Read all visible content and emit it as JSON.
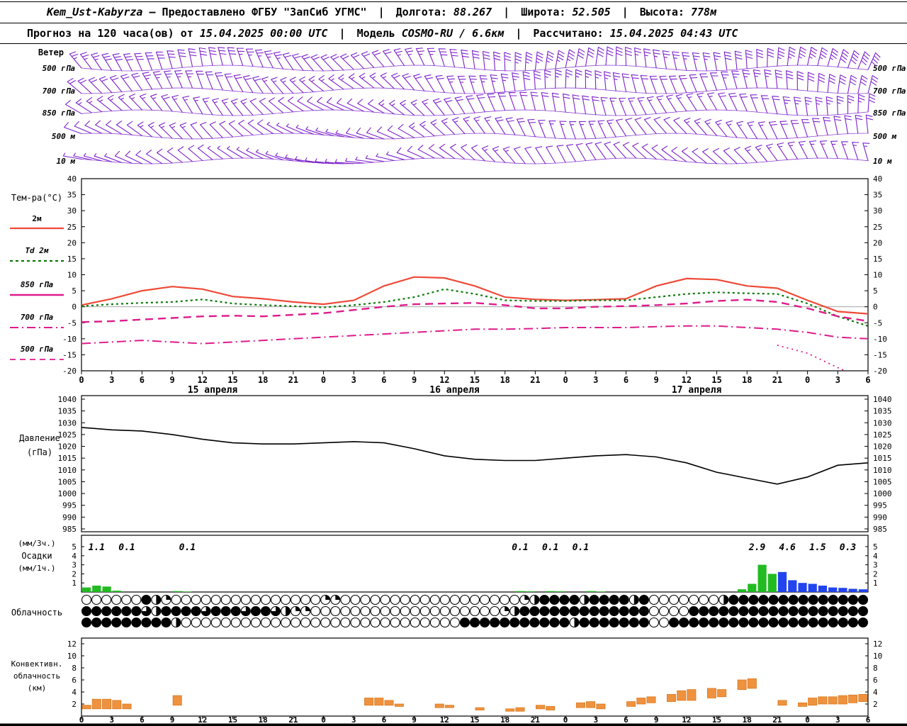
{
  "header": {
    "station": "Kem_Ust-Kabyrza",
    "provided": "— Предоставлено ФГБУ \"ЗапСиб УГМС\"",
    "sep": "|",
    "lon_label": "Долгота:",
    "lon_value": "88.267",
    "lat_label": "Широта:",
    "lat_value": "52.505",
    "alt_label": "Высота:",
    "alt_value": "778м",
    "forecast_label": "Прогноз на 120 часа(ов) от",
    "forecast_time": "15.04.2025 00:00 UTC",
    "model_label": "Модель",
    "model_value": "COSMO-RU / 6.6км",
    "calc_label": "Рассчитано:",
    "calc_value": "15.04.2025 04:43 UTC"
  },
  "labels": {
    "wind": "Ветер",
    "temp_title": "Тем-ра(°C)",
    "pressure_1": "Давление",
    "pressure_2": "(гПа)",
    "precip_1": "(мм/3ч.)",
    "precip_2": "Осадки",
    "precip_3": "(мм/1ч.)",
    "cloud": "Облачность",
    "conv_1": "Конвективн.",
    "conv_2": "облачность",
    "conv_3": "(км)"
  },
  "colors": {
    "wind": "#7d22cc",
    "t2m": "#ee4a38",
    "td": "#0a7a0a",
    "upper": "#dd1c8c",
    "pressure": "#000000",
    "rain": "#22bb22",
    "snow": "#2244ee",
    "conv": "#ef923f",
    "conv_stroke": "#d97a20"
  },
  "chart_data": [
    {
      "name": "wind",
      "type": "wind-barbs",
      "x_start": 0,
      "x_step": 3,
      "x_count": 27,
      "levels": [
        {
          "label": "500 гПа",
          "dir": [
            320,
            328,
            336,
            344,
            350,
            344,
            336,
            326,
            318,
            314,
            320,
            330,
            342,
            352,
            358,
            6,
            12,
            8,
            358,
            350,
            346,
            350,
            356,
            4,
            12,
            18,
            24
          ],
          "spd": [
            25,
            28,
            30,
            32,
            30,
            28,
            25,
            22,
            20,
            18,
            20,
            25,
            28,
            30,
            32,
            35,
            33,
            30,
            28,
            26,
            25,
            27,
            30,
            33,
            35,
            38,
            40
          ]
        },
        {
          "label": "700 гПа",
          "dir": [
            310,
            318,
            326,
            334,
            340,
            334,
            326,
            316,
            308,
            304,
            310,
            320,
            332,
            342,
            348,
            356,
            2,
            358,
            348,
            340,
            336,
            340,
            346,
            354,
            2,
            8,
            14
          ],
          "spd": [
            18,
            20,
            22,
            24,
            22,
            20,
            18,
            16,
            15,
            14,
            16,
            20,
            22,
            25,
            27,
            28,
            26,
            24,
            22,
            20,
            20,
            22,
            25,
            28,
            30,
            32,
            32
          ]
        },
        {
          "label": "850 гПа",
          "dir": [
            300,
            308,
            316,
            324,
            330,
            324,
            316,
            306,
            298,
            294,
            300,
            310,
            322,
            332,
            338,
            346,
            352,
            348,
            338,
            330,
            326,
            330,
            336,
            344,
            352,
            358,
            4
          ],
          "spd": [
            12,
            14,
            16,
            18,
            16,
            14,
            12,
            10,
            10,
            10,
            12,
            15,
            18,
            20,
            22,
            22,
            20,
            18,
            16,
            15,
            15,
            17,
            20,
            22,
            25,
            26,
            28
          ]
        },
        {
          "label": "500 м",
          "dir": [
            290,
            298,
            306,
            314,
            320,
            314,
            306,
            296,
            288,
            284,
            290,
            300,
            312,
            322,
            328,
            336,
            342,
            338,
            328,
            320,
            316,
            320,
            326,
            334,
            342,
            348,
            354
          ],
          "spd": [
            8,
            10,
            12,
            14,
            12,
            10,
            8,
            7,
            6,
            7,
            9,
            12,
            14,
            16,
            18,
            18,
            16,
            14,
            12,
            11,
            12,
            14,
            16,
            18,
            20,
            22,
            22
          ]
        },
        {
          "label": "10 м",
          "dir": [
            280,
            288,
            296,
            304,
            310,
            304,
            296,
            286,
            278,
            274,
            280,
            290,
            302,
            312,
            318,
            326,
            332,
            328,
            318,
            310,
            306,
            310,
            316,
            324,
            332,
            338,
            344
          ],
          "spd": [
            5,
            7,
            8,
            10,
            8,
            7,
            5,
            4,
            4,
            5,
            6,
            8,
            10,
            12,
            13,
            12,
            11,
            10,
            9,
            8,
            9,
            10,
            12,
            14,
            15,
            16,
            16
          ]
        }
      ]
    },
    {
      "name": "temperature",
      "type": "line",
      "ylim": [
        -20,
        40
      ],
      "ytick_step": 5,
      "x_start": 0,
      "x_step": 3,
      "x_count": 27,
      "series": [
        {
          "name": "2м",
          "color": "#ee4a38",
          "dash": "",
          "width": 2.2,
          "values": [
            0.5,
            2.5,
            5.0,
            6.3,
            5.5,
            3.2,
            2.5,
            1.5,
            0.8,
            2.0,
            6.5,
            9.3,
            9.0,
            6.5,
            3.0,
            2.3,
            2.0,
            2.2,
            2.5,
            6.5,
            8.8,
            8.5,
            6.5,
            5.8,
            2.0,
            -1.5,
            -2.2
          ]
        },
        {
          "name": "Td 2м",
          "color": "#0a7a0a",
          "dash": "3 4",
          "width": 2.2,
          "values": [
            0.2,
            0.8,
            1.2,
            1.5,
            2.3,
            1.0,
            0.5,
            0.2,
            -0.2,
            0.5,
            1.5,
            3.0,
            5.5,
            4.0,
            2.0,
            1.8,
            1.8,
            2.0,
            2.0,
            3.0,
            4.0,
            4.5,
            4.2,
            4.0,
            1.0,
            -3.0,
            -6.0
          ]
        },
        {
          "name": "850 гПа",
          "color": "#dd1c8c",
          "dash": "11 7",
          "width": 2.4,
          "values": [
            -4.8,
            -4.5,
            -4.0,
            -3.5,
            -3.0,
            -2.8,
            -3.0,
            -2.5,
            -2.0,
            -1.0,
            0.0,
            0.8,
            1.0,
            1.2,
            0.5,
            -0.5,
            -0.5,
            0.0,
            0.2,
            0.5,
            1.0,
            1.8,
            2.2,
            1.5,
            -0.5,
            -3.0,
            -4.5
          ]
        },
        {
          "name": "700 гПа",
          "color": "#dd1c8c",
          "dash": "13 5 2 5",
          "width": 2,
          "values": [
            -11.5,
            -11.0,
            -10.5,
            -11.0,
            -11.5,
            -11.0,
            -10.5,
            -10.0,
            -9.5,
            -9.0,
            -8.5,
            -8.0,
            -7.5,
            -7.0,
            -7.0,
            -6.8,
            -6.5,
            -6.5,
            -6.5,
            -6.2,
            -6.0,
            -6.0,
            -6.5,
            -7.0,
            -8.0,
            -9.5,
            -10.0
          ]
        },
        {
          "name": "500 гПа",
          "color": "#dd1c8c",
          "dash": "2 5",
          "width": 1.8,
          "values": [
            null,
            null,
            null,
            null,
            null,
            null,
            null,
            null,
            null,
            null,
            null,
            null,
            null,
            null,
            null,
            null,
            null,
            null,
            null,
            null,
            null,
            null,
            null,
            -12,
            -14.5,
            -19,
            -23
          ]
        }
      ],
      "legend": [
        {
          "label": "2м",
          "color": "#ee4a38",
          "dash": "",
          "width": 2.2,
          "italic": false
        },
        {
          "label": "Td 2м",
          "color": "#0a7a0a",
          "dash": "4 4",
          "width": 2.2,
          "italic": true
        },
        {
          "label": "850 гПа",
          "color": "#dd1c8c",
          "dash": "",
          "width": 2.4,
          "italic": true
        },
        {
          "label": "700 гПа",
          "color": "#dd1c8c",
          "dash": "12 5 2 5",
          "width": 2,
          "italic": true
        },
        {
          "label": "500 гПа",
          "color": "#dd1c8c",
          "dash": "8 6",
          "width": 1.8,
          "italic": true
        }
      ],
      "day_labels": [
        {
          "text": "15 апреля",
          "hour": 13
        },
        {
          "text": "16 апреля",
          "hour": 37
        },
        {
          "text": "17 апреля",
          "hour": 61
        }
      ]
    },
    {
      "name": "pressure",
      "type": "line",
      "ylim": [
        985,
        1040
      ],
      "ytick_step": 5,
      "x_start": 0,
      "x_step": 3,
      "x_count": 27,
      "values": [
        1028,
        1027,
        1026.5,
        1025,
        1023,
        1021.5,
        1021,
        1021,
        1021.5,
        1022,
        1021.5,
        1019,
        1016,
        1014.5,
        1014,
        1014,
        1015,
        1016,
        1016.5,
        1015.5,
        1013,
        1009,
        1006.5,
        1004,
        1007,
        1012,
        1013
      ]
    },
    {
      "name": "precipitation",
      "type": "bar",
      "ylim": [
        0,
        5
      ],
      "yticks": [
        1,
        2,
        3,
        4,
        5
      ],
      "bars": [
        [
          1,
          0.5,
          "g"
        ],
        [
          2,
          0.7,
          "g"
        ],
        [
          3,
          0.6,
          "g"
        ],
        [
          4,
          0.15,
          "g"
        ],
        [
          10,
          0.1,
          "g"
        ],
        [
          11,
          0.05,
          "g"
        ],
        [
          44,
          0.1,
          "g"
        ],
        [
          45,
          0.08,
          "g"
        ],
        [
          47,
          0.1,
          "g"
        ],
        [
          48,
          0.08,
          "g"
        ],
        [
          51,
          0.1,
          "g"
        ],
        [
          52,
          0.05,
          "g"
        ],
        [
          66,
          0.3,
          "g"
        ],
        [
          67,
          0.9,
          "g"
        ],
        [
          68,
          3.0,
          "g"
        ],
        [
          69,
          2.0,
          "g"
        ],
        [
          70,
          2.2,
          "b"
        ],
        [
          71,
          1.3,
          "b"
        ],
        [
          72,
          1.0,
          "b"
        ],
        [
          73,
          0.9,
          "b"
        ],
        [
          74,
          0.7,
          "b"
        ],
        [
          75,
          0.5,
          "b"
        ],
        [
          76,
          0.45,
          "b"
        ],
        [
          77,
          0.35,
          "b"
        ],
        [
          78,
          0.3,
          "b"
        ]
      ],
      "labels_3h": [
        [
          1.5,
          "1.1"
        ],
        [
          4.5,
          "0.1"
        ],
        [
          10.5,
          "0.1"
        ],
        [
          43.5,
          "0.1"
        ],
        [
          46.5,
          "0.1"
        ],
        [
          49.5,
          "0.1"
        ],
        [
          67,
          "2.9"
        ],
        [
          70,
          "4.6"
        ],
        [
          73,
          "1.5"
        ],
        [
          76,
          "0.3"
        ]
      ]
    },
    {
      "name": "cloudiness",
      "type": "cloud-cover",
      "rows": [
        {
          "name": "row-high",
          "octas": "0000004210000000000000001100000000000000000012444424444240000000244444444444444"
        },
        {
          "name": "row-middle",
          "octas": "4444443244443444344321100000000000000000001244444444444440000444444444444444444"
        },
        {
          "name": "row-low",
          "octas": "4444444442000000000000000000000000000044444444444244444440044444444444444444444"
        }
      ]
    },
    {
      "name": "convective-cloud",
      "type": "range-bar",
      "ylim": [
        0,
        12
      ],
      "ytick_step": 2,
      "bars": [
        [
          1,
          1.2,
          1.8
        ],
        [
          2,
          1.2,
          2.8
        ],
        [
          3,
          1.2,
          2.8
        ],
        [
          4,
          1.2,
          2.6
        ],
        [
          5,
          1.2,
          2.0
        ],
        [
          10,
          1.8,
          3.4
        ],
        [
          29,
          1.8,
          3.0
        ],
        [
          30,
          1.8,
          3.0
        ],
        [
          31,
          1.8,
          2.6
        ],
        [
          32,
          1.6,
          2.0
        ],
        [
          36,
          1.4,
          2.0
        ],
        [
          37,
          1.4,
          1.8
        ],
        [
          40,
          1.0,
          1.4
        ],
        [
          43,
          0.8,
          1.2
        ],
        [
          44,
          0.8,
          1.4
        ],
        [
          46,
          1.2,
          1.8
        ],
        [
          47,
          1.0,
          1.6
        ],
        [
          50,
          1.4,
          2.2
        ],
        [
          51,
          1.4,
          2.4
        ],
        [
          52,
          1.2,
          2.0
        ],
        [
          55,
          1.6,
          2.4
        ],
        [
          56,
          2.0,
          3.0
        ],
        [
          57,
          2.2,
          3.2
        ],
        [
          59,
          2.4,
          3.6
        ],
        [
          60,
          2.6,
          4.2
        ],
        [
          61,
          2.6,
          4.4
        ],
        [
          63,
          3.0,
          4.6
        ],
        [
          64,
          3.2,
          4.4
        ],
        [
          66,
          4.4,
          6.0
        ],
        [
          67,
          4.6,
          6.2
        ],
        [
          70,
          1.8,
          2.6
        ],
        [
          72,
          1.6,
          2.2
        ],
        [
          73,
          1.8,
          3.0
        ],
        [
          74,
          2.0,
          3.2
        ],
        [
          75,
          2.0,
          3.2
        ],
        [
          76,
          2.0,
          3.4
        ],
        [
          77,
          2.2,
          3.5
        ],
        [
          78,
          2.4,
          3.6
        ]
      ]
    }
  ]
}
